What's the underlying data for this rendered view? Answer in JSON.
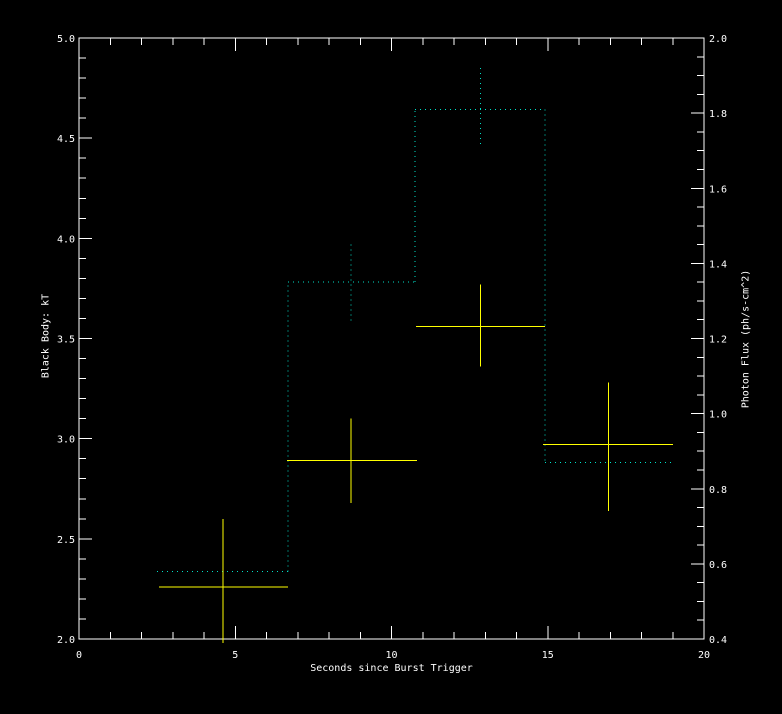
{
  "window": {
    "background": "#000000"
  },
  "chart_data": {
    "type": "line",
    "description": "Burst time history: black-body temperature kT (yellow error crosses, left axis) and photon flux (dotted step histogram with dotted error bars, right axis) versus seconds since burst trigger",
    "title": "",
    "grid": false,
    "legend": "none",
    "colors": {
      "frame": "#ffffff",
      "tick_text": "#ffffff",
      "kt_series": "#ffff00",
      "flux_series": "#00e0c8"
    },
    "axes": {
      "x": {
        "label": "Seconds since Burst Trigger",
        "range": [
          0,
          20
        ],
        "major_ticks": [
          0,
          5,
          10,
          15,
          20
        ],
        "tick_labels": [
          "0",
          "5",
          "10",
          "15",
          "20"
        ],
        "minor_tick_step": 1
      },
      "y_left": {
        "label": "Black Body: kT",
        "range": [
          2.0,
          5.0
        ],
        "major_ticks": [
          2.0,
          2.5,
          3.0,
          3.5,
          4.0,
          4.5,
          5.0
        ],
        "tick_labels": [
          "2.0",
          "2.5",
          "3.0",
          "3.5",
          "4.0",
          "4.5",
          "5.0"
        ],
        "minor_tick_step": 0.1
      },
      "y_right": {
        "label": "Photon Flux (ph/s-cm^2)",
        "range": [
          0.4,
          2.0
        ],
        "major_ticks": [
          0.4,
          0.6,
          0.8,
          1.0,
          1.2,
          1.4,
          1.6,
          1.8,
          2.0
        ],
        "tick_labels": [
          "0.4",
          "0.6",
          "0.8",
          "1.0",
          "1.2",
          "1.4",
          "1.6",
          "1.8",
          "2.0"
        ],
        "minor_tick_step": 0.05
      }
    },
    "series": [
      {
        "name": "black-body-kT",
        "style": "error-cross",
        "axis": "left",
        "color": "#ffff00",
        "points": [
          {
            "x": 4.6,
            "x_lo": 2.56,
            "x_hi": 6.69,
            "y": 2.26,
            "y_lo": 1.98,
            "y_hi": 2.6
          },
          {
            "x": 8.7,
            "x_lo": 6.66,
            "x_hi": 10.82,
            "y": 2.89,
            "y_lo": 2.68,
            "y_hi": 3.1
          },
          {
            "x": 12.85,
            "x_lo": 10.78,
            "x_hi": 14.91,
            "y": 3.56,
            "y_lo": 3.36,
            "y_hi": 3.77
          },
          {
            "x": 16.95,
            "x_lo": 14.85,
            "x_hi": 19.01,
            "y": 2.97,
            "y_lo": 2.64,
            "y_hi": 3.28
          }
        ]
      },
      {
        "name": "photon-flux",
        "style": "dotted-step-histogram",
        "axis": "right",
        "color": "#00e0c8",
        "bin_edges": [
          2.5,
          6.69,
          10.75,
          14.91,
          18.95
        ],
        "values": [
          0.58,
          1.35,
          1.81,
          0.87
        ],
        "error_bars": [
          {
            "x": 8.7,
            "y_lo": 1.24,
            "y_hi": 1.45
          },
          {
            "x": 12.85,
            "y_lo": 1.71,
            "y_hi": 1.92
          }
        ]
      }
    ]
  }
}
